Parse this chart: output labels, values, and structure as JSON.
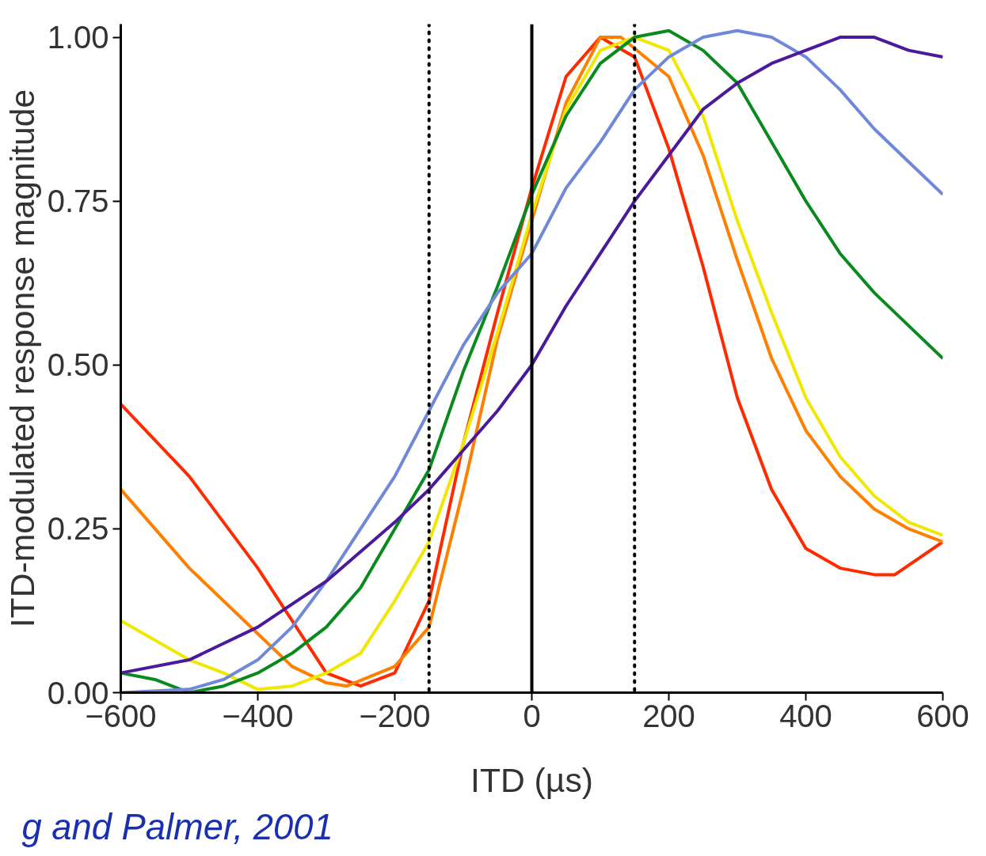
{
  "chart_data": {
    "type": "line",
    "xlabel": "ITD (µs)",
    "ylabel": "ITD-modulated response magnitude",
    "xlim": [
      -600,
      600
    ],
    "ylim": [
      0,
      1.02
    ],
    "xticks": [
      -600,
      -400,
      -200,
      0,
      200,
      400,
      600
    ],
    "yticks": [
      {
        "value": 0,
        "label": "0.00"
      },
      {
        "value": 0.25,
        "label": "0.25"
      },
      {
        "value": 0.5,
        "label": "0.50"
      },
      {
        "value": 0.75,
        "label": "0.75"
      },
      {
        "value": 1,
        "label": "1.00"
      }
    ],
    "marker": "none",
    "line_style": "solid",
    "ref_lines": [
      {
        "axis": "x",
        "value": -150,
        "color": "#000000",
        "line_style": "dotted"
      },
      {
        "axis": "x",
        "value": 0,
        "color": "#000000",
        "line_style": "solid"
      },
      {
        "axis": "x",
        "value": 150,
        "color": "#000000",
        "line_style": "dotted"
      }
    ],
    "annotations": [
      "g and Palmer, 2001"
    ],
    "series": [
      {
        "color": "#ff2a00",
        "x": [
          -600,
          -500,
          -400,
          -350,
          -300,
          -250,
          -200,
          -150,
          -100,
          -50,
          0,
          50,
          100,
          150,
          200,
          250,
          300,
          350,
          400,
          450,
          500,
          530,
          600
        ],
        "values": [
          0.44,
          0.33,
          0.19,
          0.11,
          0.03,
          0.01,
          0.03,
          0.14,
          0.38,
          0.58,
          0.77,
          0.94,
          1.0,
          0.97,
          0.83,
          0.65,
          0.45,
          0.31,
          0.22,
          0.19,
          0.18,
          0.18,
          0.23
        ]
      },
      {
        "color": "#ff8000",
        "x": [
          -600,
          -500,
          -400,
          -350,
          -300,
          -270,
          -200,
          -150,
          -100,
          -50,
          0,
          50,
          100,
          130,
          200,
          250,
          300,
          350,
          400,
          450,
          500,
          550,
          600
        ],
        "values": [
          0.31,
          0.19,
          0.09,
          0.04,
          0.015,
          0.01,
          0.04,
          0.1,
          0.31,
          0.54,
          0.72,
          0.9,
          1.0,
          1.0,
          0.94,
          0.82,
          0.66,
          0.51,
          0.4,
          0.33,
          0.28,
          0.25,
          0.23
        ]
      },
      {
        "color": "#f0e800",
        "x": [
          -600,
          -500,
          -450,
          -400,
          -350,
          -300,
          -250,
          -200,
          -150,
          -100,
          -50,
          0,
          50,
          100,
          150,
          200,
          250,
          300,
          350,
          400,
          450,
          500,
          550,
          600
        ],
        "values": [
          0.11,
          0.05,
          0.03,
          0.005,
          0.01,
          0.03,
          0.06,
          0.14,
          0.23,
          0.38,
          0.55,
          0.73,
          0.89,
          0.98,
          1.0,
          0.98,
          0.88,
          0.72,
          0.58,
          0.45,
          0.36,
          0.3,
          0.26,
          0.24
        ]
      },
      {
        "color": "#0a8a1e",
        "x": [
          -600,
          -550,
          -500,
          -450,
          -400,
          -350,
          -300,
          -250,
          -200,
          -150,
          -100,
          -50,
          0,
          50,
          100,
          150,
          200,
          250,
          300,
          350,
          400,
          450,
          500,
          550,
          600
        ],
        "values": [
          0.03,
          0.02,
          0.0,
          0.01,
          0.03,
          0.06,
          0.1,
          0.16,
          0.25,
          0.34,
          0.49,
          0.62,
          0.76,
          0.88,
          0.96,
          1.0,
          1.01,
          0.98,
          0.93,
          0.84,
          0.75,
          0.67,
          0.61,
          0.56,
          0.51
        ]
      },
      {
        "color": "#7088d8",
        "x": [
          -600,
          -500,
          -450,
          -400,
          -350,
          -300,
          -250,
          -200,
          -150,
          -100,
          -50,
          0,
          50,
          100,
          150,
          200,
          250,
          300,
          350,
          400,
          450,
          500,
          550,
          600
        ],
        "values": [
          0.0,
          0.005,
          0.02,
          0.05,
          0.1,
          0.17,
          0.25,
          0.33,
          0.43,
          0.53,
          0.61,
          0.67,
          0.77,
          0.84,
          0.92,
          0.97,
          1.0,
          1.01,
          1.0,
          0.97,
          0.92,
          0.86,
          0.81,
          0.76
        ]
      },
      {
        "color": "#4b1a9a",
        "x": [
          -600,
          -500,
          -400,
          -300,
          -200,
          -150,
          -100,
          -50,
          0,
          50,
          100,
          150,
          200,
          250,
          300,
          350,
          400,
          450,
          500,
          550,
          600
        ],
        "values": [
          0.03,
          0.05,
          0.1,
          0.17,
          0.26,
          0.31,
          0.37,
          0.43,
          0.5,
          0.59,
          0.67,
          0.75,
          0.82,
          0.89,
          0.93,
          0.96,
          0.98,
          1.0,
          1.0,
          0.98,
          0.97
        ]
      }
    ]
  }
}
